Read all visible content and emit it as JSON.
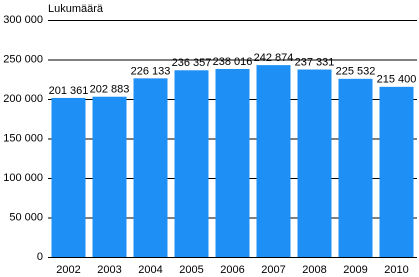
{
  "chart_data": {
    "type": "bar",
    "axis_label": "Lukumäärä",
    "categories": [
      "2002",
      "2003",
      "2004",
      "2005",
      "2006",
      "2007",
      "2008",
      "2009",
      "2010"
    ],
    "values": [
      201361,
      202883,
      226133,
      236357,
      238016,
      242874,
      237331,
      225532,
      215400
    ],
    "value_labels": [
      "201 361",
      "202 883",
      "226 133",
      "236 357",
      "238 016",
      "242 874",
      "237 331",
      "225 532",
      "215 400"
    ],
    "color": "#1e8ff5",
    "ylim": [
      0,
      300000
    ],
    "yticks": [
      0,
      {
        "value": 50000,
        "label": "50 000"
      },
      {
        "value": 100000,
        "label": "100 000"
      },
      {
        "value": 150000,
        "label": "150 000"
      },
      {
        "value": 200000,
        "label": "200 000"
      },
      {
        "value": 250000,
        "label": "250 000"
      },
      {
        "value": 300000,
        "label": "300 000"
      }
    ],
    "grid": true
  }
}
